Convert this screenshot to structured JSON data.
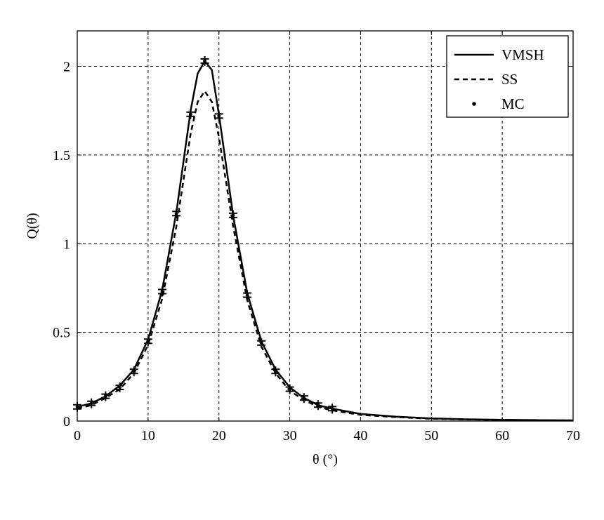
{
  "chart_data": {
    "type": "line",
    "title": "",
    "xlabel": "θ (°)",
    "ylabel": "Q(θ)",
    "xlim": [
      0,
      70
    ],
    "ylim": [
      0,
      2.2
    ],
    "xticks": [
      0,
      10,
      20,
      30,
      40,
      50,
      60,
      70
    ],
    "yticks": [
      0,
      0.5,
      1,
      1.5,
      2
    ],
    "xtick_labels": [
      "0",
      "10",
      "20",
      "30",
      "40",
      "50",
      "60",
      "70"
    ],
    "ytick_labels": [
      "0",
      "0.5",
      "1",
      "1.5",
      "2"
    ],
    "grid": true,
    "legend_position": "top-right",
    "series": [
      {
        "name": "VMSH",
        "style": "solid",
        "x": [
          0,
          2,
          4,
          6,
          8,
          10,
          12,
          14,
          16,
          17,
          18,
          19,
          20,
          22,
          24,
          26,
          28,
          30,
          32,
          34,
          36,
          40,
          45,
          50,
          55,
          60,
          65,
          70
        ],
        "y": [
          0.08,
          0.1,
          0.14,
          0.2,
          0.29,
          0.46,
          0.74,
          1.18,
          1.75,
          1.96,
          2.03,
          1.98,
          1.73,
          1.16,
          0.72,
          0.45,
          0.29,
          0.19,
          0.13,
          0.09,
          0.07,
          0.04,
          0.025,
          0.015,
          0.01,
          0.007,
          0.005,
          0.004
        ]
      },
      {
        "name": "SS",
        "style": "dashed",
        "x": [
          0,
          2,
          4,
          6,
          8,
          10,
          12,
          14,
          16,
          17,
          18,
          19,
          20,
          22,
          24,
          26,
          28,
          30,
          32,
          34,
          36,
          40,
          45,
          50,
          55,
          60,
          65,
          70
        ],
        "y": [
          0.07,
          0.09,
          0.13,
          0.18,
          0.27,
          0.43,
          0.69,
          1.1,
          1.62,
          1.8,
          1.86,
          1.8,
          1.6,
          1.1,
          0.68,
          0.42,
          0.27,
          0.17,
          0.12,
          0.08,
          0.06,
          0.035,
          0.022,
          0.013,
          0.009,
          0.006,
          0.004,
          0.003
        ]
      },
      {
        "name": "MC",
        "style": "markers",
        "x": [
          0,
          2,
          4,
          6,
          8,
          10,
          12,
          14,
          16,
          18,
          20,
          22,
          24,
          26,
          28,
          30,
          32,
          34,
          36
        ],
        "y": [
          0.08,
          0.1,
          0.14,
          0.19,
          0.28,
          0.45,
          0.73,
          1.17,
          1.73,
          2.03,
          1.72,
          1.16,
          0.71,
          0.44,
          0.28,
          0.18,
          0.13,
          0.09,
          0.07
        ]
      }
    ]
  }
}
